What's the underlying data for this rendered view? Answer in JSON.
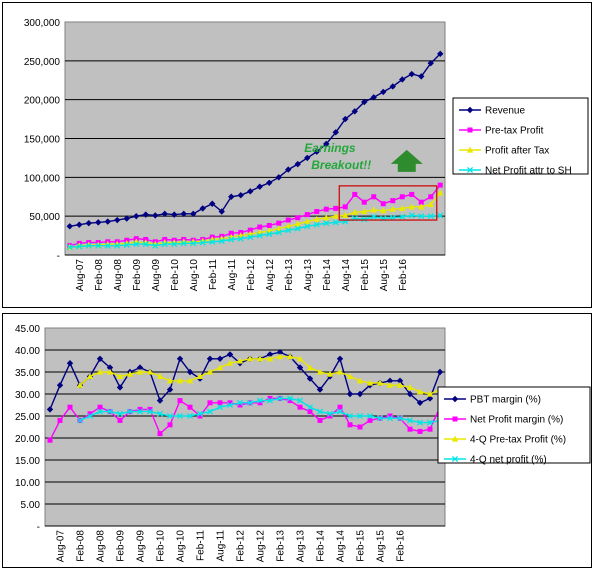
{
  "chart_data": [
    {
      "type": "line",
      "title": "",
      "xlabel": "",
      "ylabel": "",
      "ylim": [
        0,
        300000
      ],
      "y_ticks": [
        "-",
        "50,000",
        "100,000",
        "150,000",
        "200,000",
        "250,000",
        "300,000"
      ],
      "x_tick_labels": [
        "Aug-07",
        "Feb-08",
        "Aug-08",
        "Feb-09",
        "Aug-09",
        "Feb-10",
        "Aug-10",
        "Feb-11",
        "Aug-11",
        "Feb-12",
        "Aug-12",
        "Feb-13",
        "Aug-13",
        "Feb-14",
        "Aug-14",
        "Feb-15",
        "Aug-15",
        "Feb-16"
      ],
      "grid": true,
      "legend_position": "right",
      "series": [
        {
          "name": "Revenue",
          "color": "#000080",
          "marker": "diamond",
          "values": [
            37000,
            39000,
            41000,
            42000,
            43000,
            45000,
            47000,
            50000,
            52000,
            51000,
            53000,
            52000,
            53000,
            53000,
            60000,
            66000,
            56000,
            75000,
            77000,
            82000,
            88000,
            93000,
            100000,
            110000,
            117000,
            125000,
            133000,
            143000,
            158000,
            175000,
            185000,
            197000,
            203000,
            210000,
            217000,
            226000,
            233000,
            230000,
            247000,
            259000
          ]
        },
        {
          "name": "Pre-tax Profit",
          "color": "#ff00ff",
          "marker": "square",
          "values": [
            12000,
            15000,
            16000,
            16000,
            17000,
            17000,
            19000,
            21000,
            20000,
            17000,
            20000,
            19000,
            20000,
            19000,
            20000,
            23000,
            24000,
            28000,
            29000,
            32000,
            36000,
            38000,
            41000,
            45000,
            48000,
            52000,
            56000,
            59000,
            60000,
            62000,
            78000,
            68000,
            75000,
            66000,
            70000,
            75000,
            78000,
            68000,
            75000,
            90000
          ]
        },
        {
          "name": "Profit after Tax",
          "color": "#e8e800",
          "marker": "triangle",
          "values": [
            10000,
            12000,
            13000,
            13000,
            14000,
            14000,
            15000,
            17000,
            16000,
            14000,
            16000,
            16000,
            17000,
            17000,
            18000,
            20000,
            21000,
            23000,
            25000,
            27000,
            29000,
            31000,
            34000,
            37000,
            40000,
            43000,
            46000,
            48000,
            50000,
            51000,
            55000,
            56000,
            58000,
            57000,
            59000,
            60000,
            62000,
            62000,
            65000,
            80000
          ]
        },
        {
          "name": "Net Profit attr to SH",
          "color": "#00e5e5",
          "marker": "x",
          "values": [
            10000,
            11000,
            12000,
            12000,
            12000,
            12000,
            13000,
            14000,
            14000,
            12000,
            14000,
            14000,
            15000,
            15000,
            16000,
            17000,
            18000,
            20000,
            21000,
            23000,
            25000,
            27000,
            29000,
            32000,
            34000,
            37000,
            39000,
            41000,
            42000,
            43000,
            47000,
            46000,
            49000,
            47000,
            48000,
            49000,
            51000,
            50000,
            50000,
            51000
          ]
        }
      ],
      "annotation": {
        "text_line1": "Earnings",
        "text_line2": "Breakout!!",
        "box_color": "#cc0000",
        "arrow_color": "#2e8b2e",
        "box_x_range": [
          29,
          39
        ],
        "box_y_range": [
          45000,
          89000
        ]
      }
    },
    {
      "type": "line",
      "title": "",
      "xlabel": "",
      "ylabel": "",
      "ylim": [
        0,
        45
      ],
      "y_ticks": [
        "-",
        "5.00",
        "10.00",
        "15.00",
        "20.00",
        "25.00",
        "30.00",
        "35.00",
        "40.00",
        "45.00"
      ],
      "x_tick_labels": [
        "Aug-07",
        "Feb-08",
        "Aug-08",
        "Feb-09",
        "Aug-09",
        "Feb-10",
        "Aug-10",
        "Feb-11",
        "Aug-11",
        "Feb-12",
        "Aug-12",
        "Feb-13",
        "Aug-13",
        "Feb-14",
        "Aug-14",
        "Feb-15",
        "Aug-15",
        "Feb-16"
      ],
      "grid": true,
      "legend_position": "right",
      "series": [
        {
          "name": "PBT margin (%)",
          "color": "#000080",
          "marker": "diamond",
          "values": [
            26.5,
            32,
            37,
            32,
            34,
            38,
            36,
            31.5,
            35,
            36,
            35,
            28.5,
            31,
            38,
            35,
            33.5,
            38,
            38,
            39,
            37,
            38,
            38,
            39,
            39.5,
            38.5,
            36,
            33.5,
            31,
            34,
            38,
            30,
            30,
            32,
            32.5,
            33,
            33,
            30,
            28,
            29,
            35
          ]
        },
        {
          "name": "Net Profit margin (%)",
          "color": "#ff00ff",
          "marker": "square",
          "values": [
            19.5,
            24,
            27,
            24,
            25.5,
            27,
            26,
            24,
            26,
            26.5,
            26.5,
            21,
            23,
            28.5,
            27,
            25,
            28,
            28,
            28,
            27.5,
            28,
            28,
            29,
            29,
            28.5,
            27,
            26,
            24,
            25,
            27,
            23,
            22.5,
            24,
            24.5,
            25,
            24.5,
            22,
            21.5,
            22,
            27
          ]
        },
        {
          "name": "4-Q Pre-tax Profit (%)",
          "color": "#e8e800",
          "marker": "triangle",
          "values": [
            null,
            null,
            null,
            32,
            34,
            35,
            35,
            34,
            34.5,
            35,
            35,
            34,
            33,
            33,
            33,
            34,
            35,
            36,
            37,
            37.5,
            38,
            38,
            38,
            38.5,
            38.5,
            38,
            36,
            35,
            34.5,
            35,
            34,
            33,
            32.5,
            32.5,
            32,
            32,
            31.5,
            30.5,
            30,
            31
          ]
        },
        {
          "name": "4-Q net profit (%)",
          "color": "#00e5e5",
          "marker": "x",
          "values": [
            null,
            null,
            null,
            24,
            25,
            26,
            26,
            25.5,
            26,
            26,
            26,
            25.5,
            25,
            25,
            25,
            25.5,
            26,
            27,
            27.5,
            28,
            28,
            28.5,
            28.5,
            29,
            29,
            28.5,
            27,
            26,
            25.5,
            26,
            25,
            25,
            25,
            24.5,
            24.5,
            24.5,
            24,
            23.5,
            23.5,
            24
          ]
        }
      ]
    }
  ]
}
